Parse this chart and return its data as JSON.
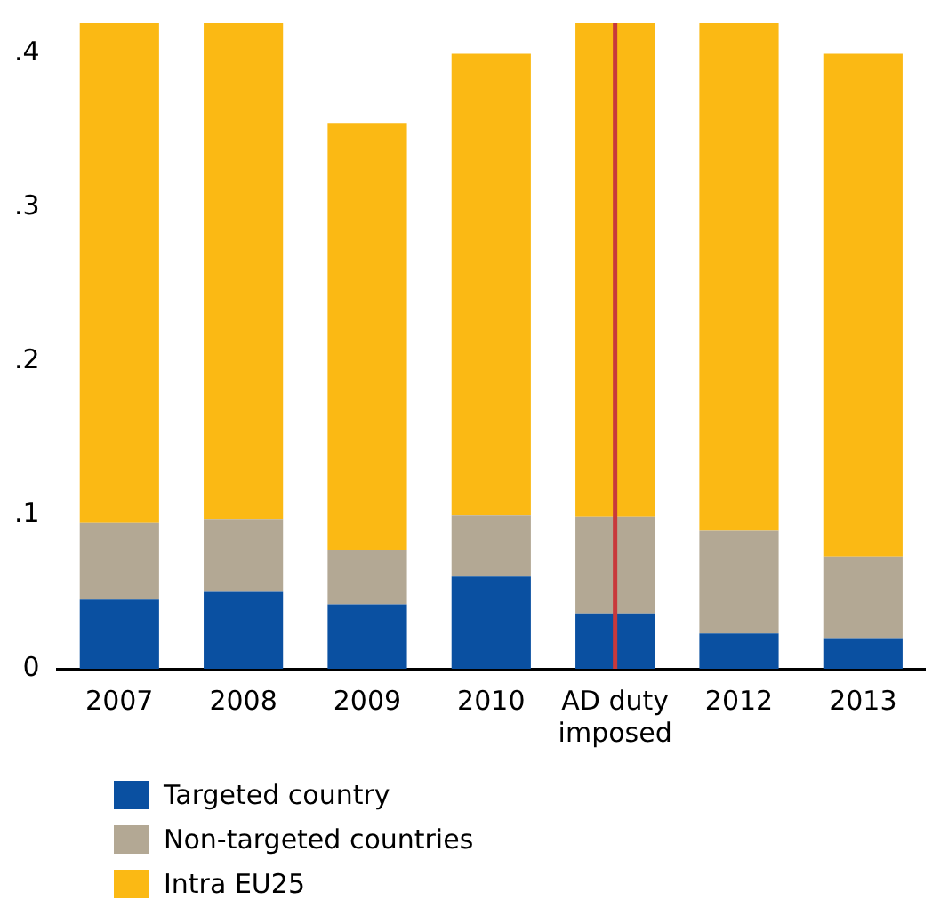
{
  "chart_data": {
    "type": "bar",
    "stacked": true,
    "categories": [
      "2007",
      "2008",
      "2009",
      "2010",
      "AD duty imposed",
      "2012",
      "2013"
    ],
    "series": [
      {
        "name": "Targeted country",
        "color": "#0a50a1",
        "values": [
          0.045,
          0.05,
          0.042,
          0.06,
          0.036,
          0.023,
          0.02
        ]
      },
      {
        "name": "Non-targeted countries",
        "color": "#b3a894",
        "values": [
          0.05,
          0.047,
          0.035,
          0.04,
          0.063,
          0.067,
          0.053
        ]
      },
      {
        "name": "Intra EU25",
        "color": "#fbb914",
        "values": [
          0.325,
          0.323,
          0.278,
          0.3,
          0.321,
          0.33,
          0.327
        ]
      }
    ],
    "ylim": [
      0,
      0.42
    ],
    "yticks": [
      {
        "value": 0,
        "label": "0"
      },
      {
        "value": 0.1,
        "label": ".1"
      },
      {
        "value": 0.2,
        "label": ".2"
      },
      {
        "value": 0.3,
        "label": ".3"
      },
      {
        "value": 0.4,
        "label": ".4"
      }
    ],
    "ref_lines": [
      {
        "axis": "x",
        "value": "AD duty imposed",
        "color": "#c8393b"
      }
    ],
    "grid": false,
    "legend": "bottom"
  }
}
